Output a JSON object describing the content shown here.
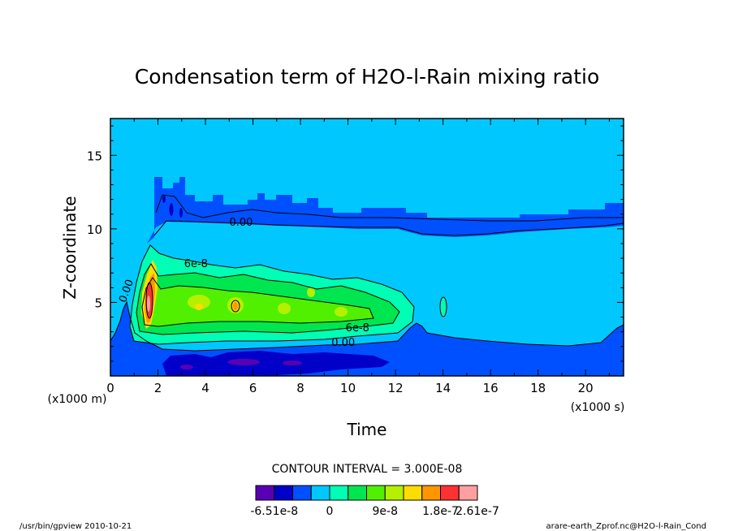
{
  "chart_data": {
    "type": "contour",
    "title": "Condensation term of H2O-l-Rain mixing ratio",
    "xlabel": "Time",
    "ylabel": "Z-coordinate",
    "x_unit": "(x1000 s)",
    "y_unit": "(x1000 m)",
    "xlim": [
      0,
      21.6
    ],
    "ylim": [
      0,
      17.5
    ],
    "x_ticks": [
      0,
      2,
      4,
      6,
      8,
      10,
      12,
      14,
      16,
      18,
      20
    ],
    "y_ticks": [
      5,
      10,
      15
    ],
    "contour_interval_text": "CONTOUR INTERVAL = 3.000E-08",
    "contour_labels": [
      {
        "text": "0.00",
        "x": 5.5,
        "y": 10.2
      },
      {
        "text": "6e-8",
        "x": 3.6,
        "y": 7.4
      },
      {
        "text": "0.00",
        "x": 0.8,
        "y": 5.7
      },
      {
        "text": "6e-8",
        "x": 10.4,
        "y": 3.05
      },
      {
        "text": "0.00",
        "x": 9.8,
        "y": 2.05
      }
    ],
    "levels": [
      {
        "lo": null,
        "hi": -6.51e-08,
        "color": "#5a00b4"
      },
      {
        "lo": -6.51e-08,
        "hi": -3e-08,
        "color": "#0000c8"
      },
      {
        "lo": -3e-08,
        "hi": 0,
        "color": "#0050ff"
      },
      {
        "lo": 0,
        "hi": 3e-08,
        "color": "#00c8ff"
      },
      {
        "lo": 3e-08,
        "hi": 6e-08,
        "color": "#00ffb4"
      },
      {
        "lo": 6e-08,
        "hi": 9e-08,
        "color": "#00e650"
      },
      {
        "lo": 9e-08,
        "hi": 1.2e-07,
        "color": "#50f000"
      },
      {
        "lo": 1.2e-07,
        "hi": 1.5e-07,
        "color": "#b4f000"
      },
      {
        "lo": 1.5e-07,
        "hi": 1.8e-07,
        "color": "#ffdc00"
      },
      {
        "lo": 1.8e-07,
        "hi": 2.1e-07,
        "color": "#ff9600"
      },
      {
        "lo": 2.1e-07,
        "hi": 2.61e-07,
        "color": "#ff3232"
      },
      {
        "lo": 2.61e-07,
        "hi": null,
        "color": "#ffa0a0"
      }
    ],
    "colorbar_labels": [
      "-6.51e-8",
      "0",
      "9e-8",
      "1.8e-7",
      "2.61e-7"
    ],
    "colorbar_label_index": [
      1,
      4,
      7,
      10,
      12
    ]
  },
  "footer": {
    "left": "/usr/bin/gpview  2010-10-21",
    "right": "arare-earth_Zprof.nc@H2O-l-Rain_Cond"
  }
}
